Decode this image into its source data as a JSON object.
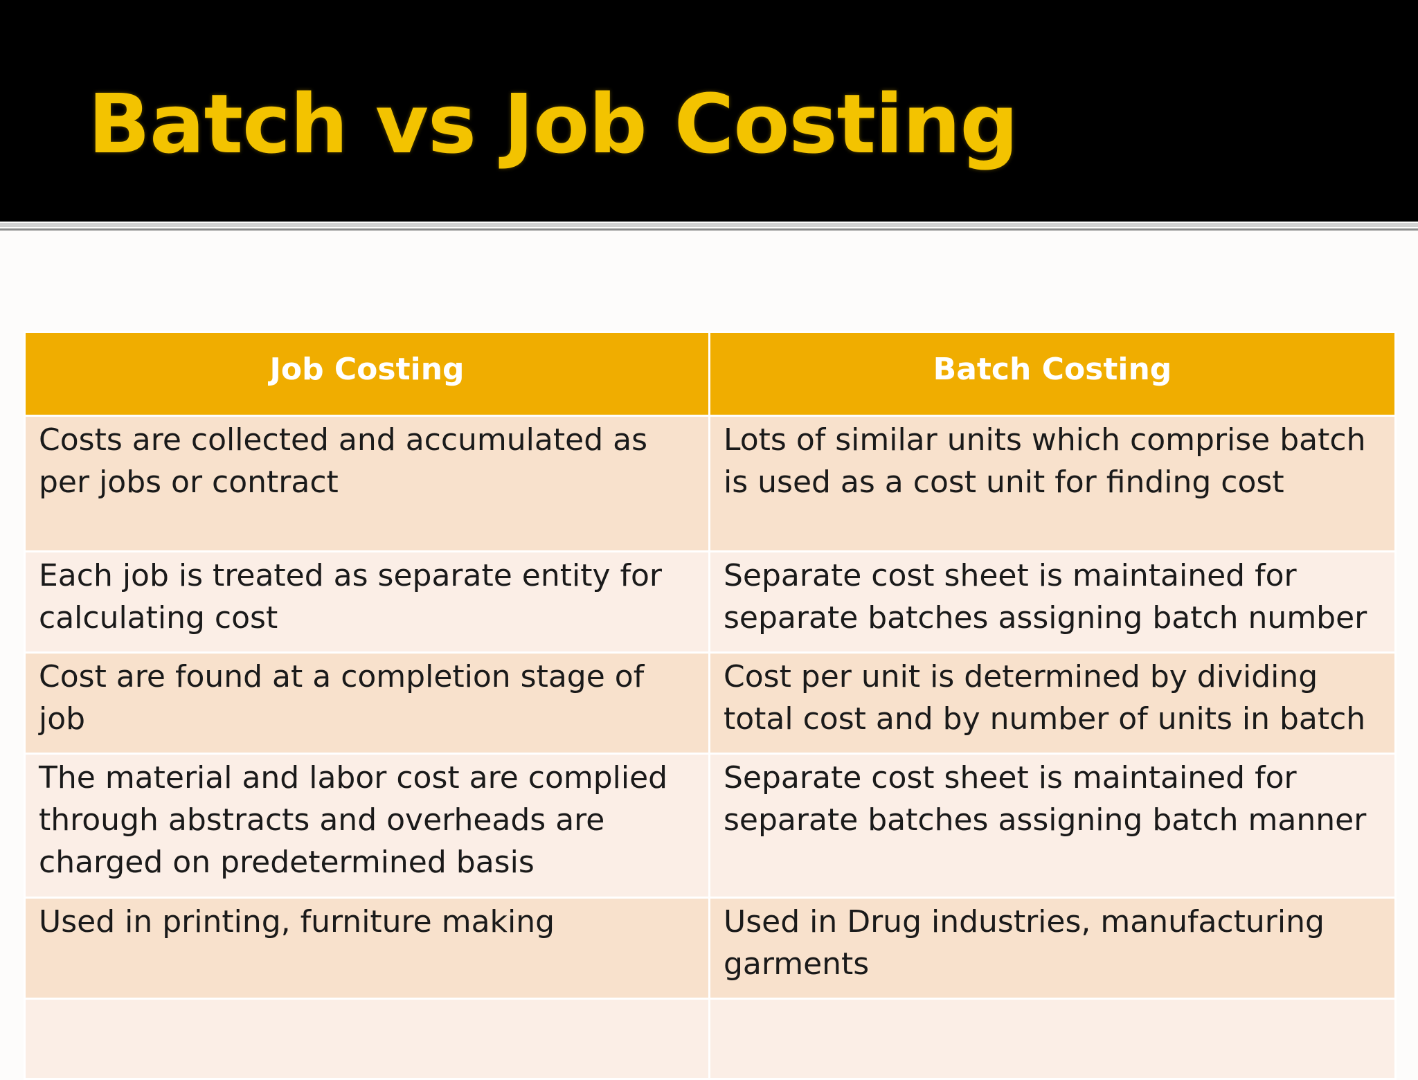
{
  "slide": {
    "title": "Batch vs Job Costing"
  },
  "table": {
    "headers": [
      "Job Costing",
      "Batch Costing"
    ],
    "rows": [
      {
        "job": "Costs are collected and accumulated as per jobs or contract",
        "batch": "Lots of similar units which comprise batch is used as a cost unit for finding cost"
      },
      {
        "job": "Each job is treated as separate entity for calculating cost",
        "batch": "Separate cost sheet is maintained for separate batches assigning batch number"
      },
      {
        "job": "Cost are found at a completion stage of job",
        "batch": "Cost per unit is determined by dividing total cost and by number of units in batch"
      },
      {
        "job": "The material and labor cost are complied through abstracts and overheads are charged on predetermined basis",
        "batch": "Separate cost sheet is maintained for separate batches assigning batch manner"
      },
      {
        "job": "Used in printing, furniture making",
        "batch": "Used in Drug industries, manufacturing garments"
      },
      {
        "job": "",
        "batch": ""
      }
    ]
  },
  "colors": {
    "title_bar": "#000000",
    "title_text": "#f3c300",
    "header_fill": "#f0ad00",
    "row_dark": "#f8e1cc",
    "row_light": "#fbeee6"
  }
}
